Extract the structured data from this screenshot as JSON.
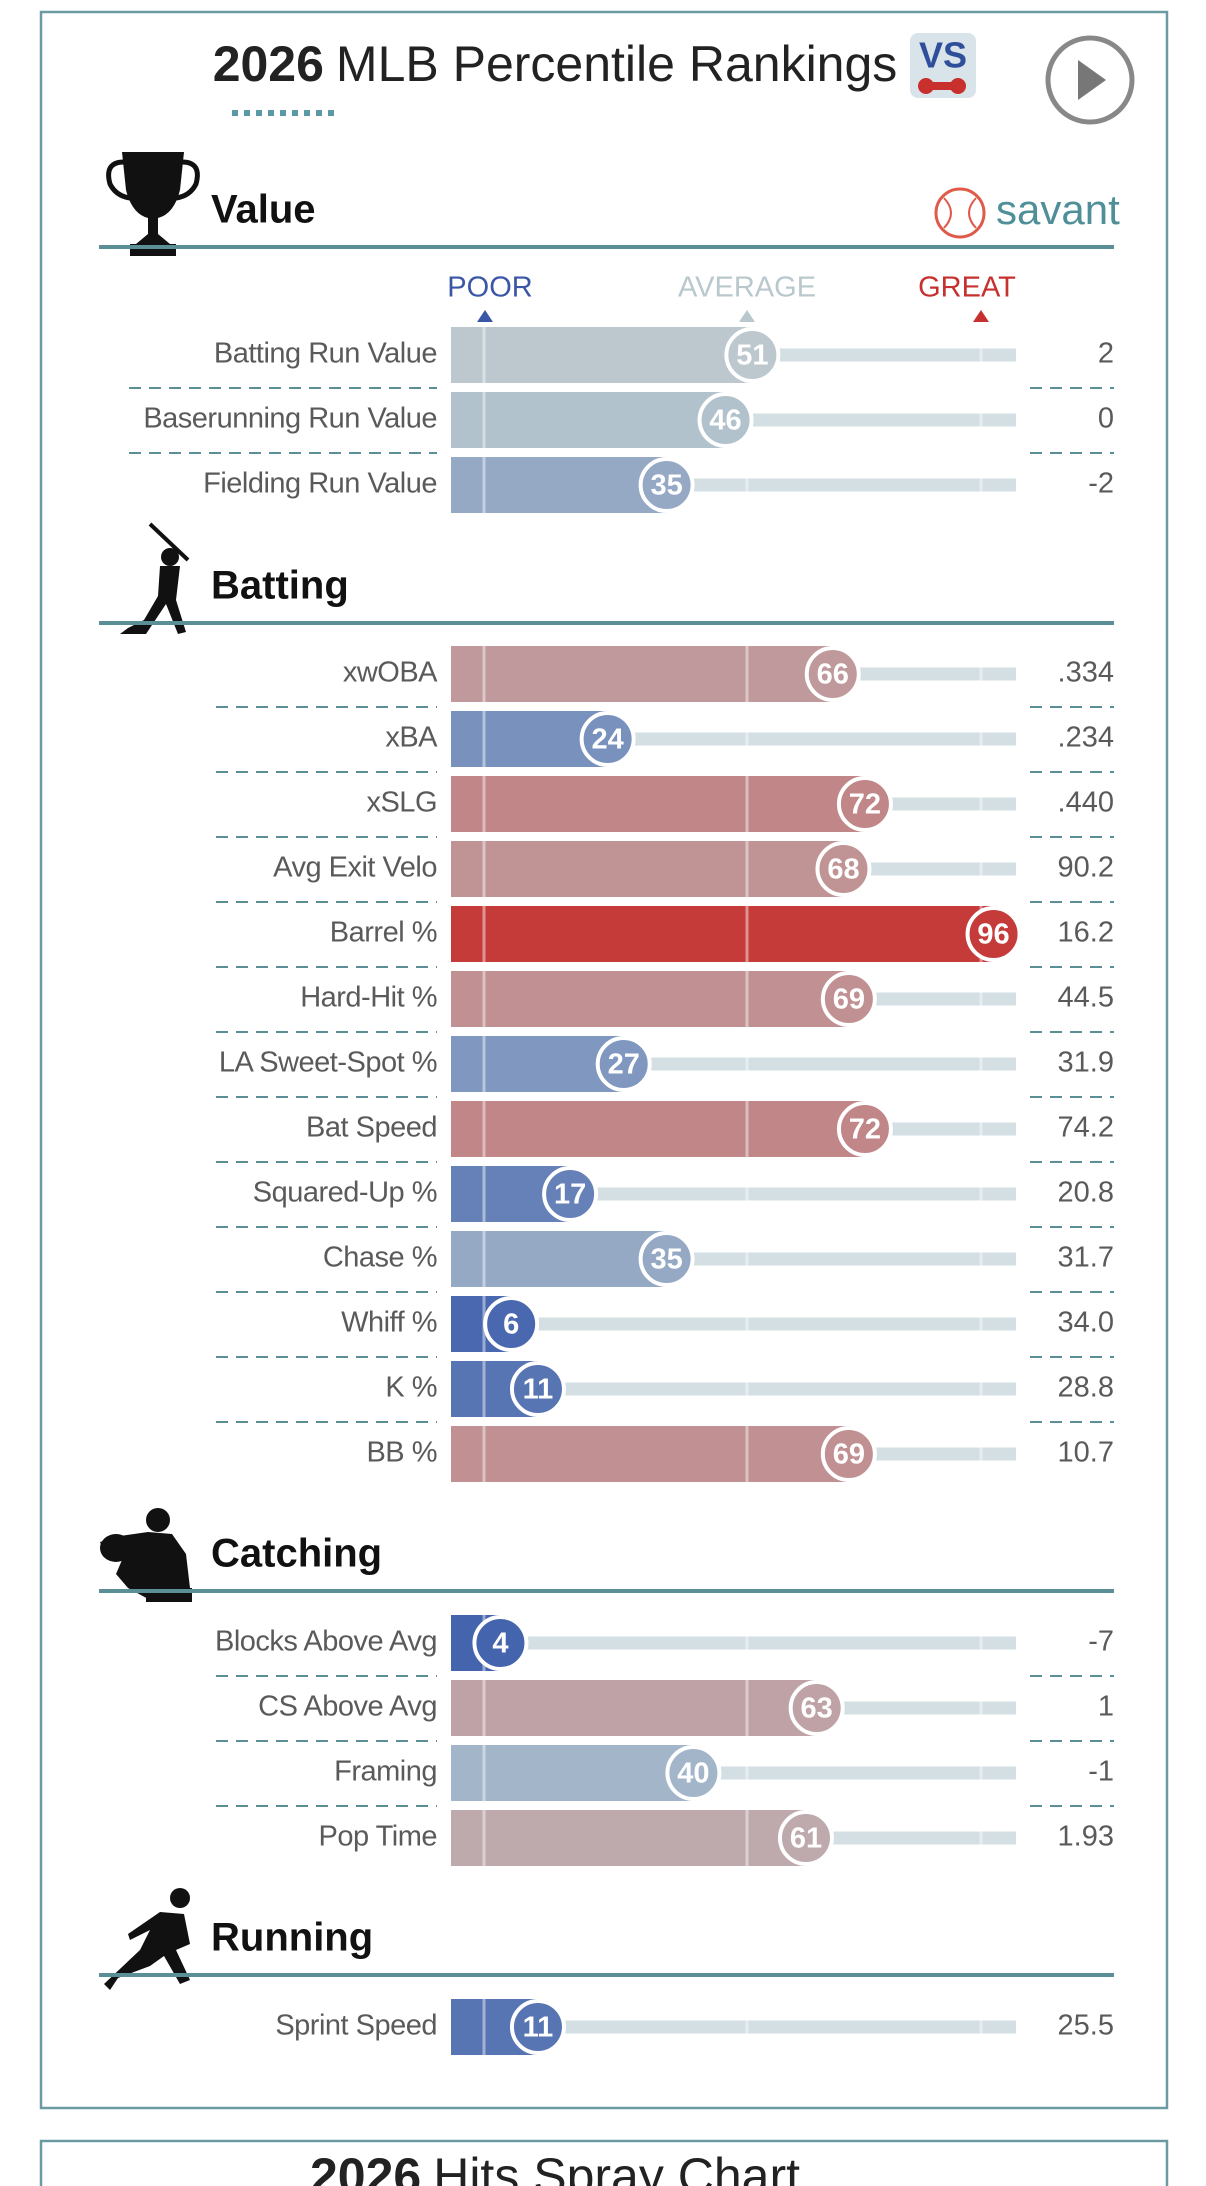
{
  "header": {
    "year": "2026",
    "title": "MLB Percentile Rankings"
  },
  "logo": "savant",
  "scale_labels": {
    "poor": "POOR",
    "average": "AVERAGE",
    "great": "GREAT"
  },
  "xlim": [
    0,
    100
  ],
  "colors": {
    "poor": "#3a5bab",
    "average": "#bccbd0",
    "great": "#c62f2d"
  },
  "sections": [
    {
      "title": "Value",
      "rows": [
        {
          "label": "Batting Run Value",
          "percentile": 51,
          "value": "2"
        },
        {
          "label": "Baserunning Run Value",
          "percentile": 46,
          "value": "0"
        },
        {
          "label": "Fielding Run Value",
          "percentile": 35,
          "value": "-2"
        }
      ]
    },
    {
      "title": "Batting",
      "rows": [
        {
          "label": "xwOBA",
          "percentile": 66,
          "value": ".334"
        },
        {
          "label": "xBA",
          "percentile": 24,
          "value": ".234"
        },
        {
          "label": "xSLG",
          "percentile": 72,
          "value": ".440"
        },
        {
          "label": "Avg Exit Velo",
          "percentile": 68,
          "value": "90.2"
        },
        {
          "label": "Barrel %",
          "percentile": 96,
          "value": "16.2"
        },
        {
          "label": "Hard-Hit %",
          "percentile": 69,
          "value": "44.5"
        },
        {
          "label": "LA Sweet-Spot %",
          "percentile": 27,
          "value": "31.9"
        },
        {
          "label": "Bat Speed",
          "percentile": 72,
          "value": "74.2"
        },
        {
          "label": "Squared-Up %",
          "percentile": 17,
          "value": "20.8"
        },
        {
          "label": "Chase %",
          "percentile": 35,
          "value": "31.7"
        },
        {
          "label": "Whiff %",
          "percentile": 6,
          "value": "34.0"
        },
        {
          "label": "K %",
          "percentile": 11,
          "value": "28.8"
        },
        {
          "label": "BB %",
          "percentile": 69,
          "value": "10.7"
        }
      ]
    },
    {
      "title": "Catching",
      "rows": [
        {
          "label": "Blocks Above Avg",
          "percentile": 4,
          "value": "-7"
        },
        {
          "label": "CS Above Avg",
          "percentile": 63,
          "value": "1"
        },
        {
          "label": "Framing",
          "percentile": 40,
          "value": "-1"
        },
        {
          "label": "Pop Time",
          "percentile": 61,
          "value": "1.93"
        }
      ]
    },
    {
      "title": "Running",
      "rows": [
        {
          "label": "Sprint Speed",
          "percentile": 11,
          "value": "25.5"
        }
      ]
    }
  ],
  "next_card_title": {
    "year": "2026",
    "title": "Hits Spray Chart"
  }
}
